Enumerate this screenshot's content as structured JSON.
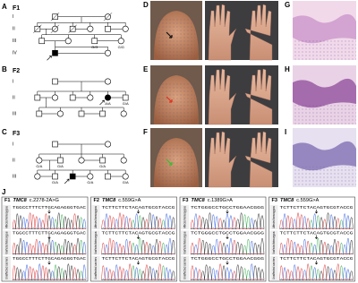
{
  "panels": {
    "pedigrees": [
      {
        "label": "A",
        "family": "F1",
        "generations": [
          "I",
          "II",
          "III",
          "IV"
        ],
        "genotypes": [
          "G/G",
          "G/G"
        ]
      },
      {
        "label": "B",
        "family": "F2",
        "generations": [
          "I",
          "II",
          "III"
        ],
        "genotypes": [
          "A/A",
          "G/A"
        ]
      },
      {
        "label": "C",
        "family": "F3",
        "generations": [
          "I",
          "II",
          "III"
        ],
        "genotypes": [
          "G/A",
          "G/A",
          "G/A",
          "G/A",
          "G/A",
          "G/A"
        ]
      }
    ],
    "photos": [
      "D",
      "E",
      "F"
    ],
    "histology": [
      "G",
      "H",
      "I"
    ],
    "sequencing": {
      "label": "J",
      "panels": [
        {
          "family": "F1",
          "gene": "TMC8",
          "variant": "c.2278-2A>G",
          "rows": [
            {
              "label": "Affected homozygous",
              "sequence": "TGGCCTTTCTTGCAGAGGGTGAC"
            },
            {
              "label": "Unaffected heterozygous",
              "sequence": "TGGCCTTTCTTGCAGAGGGTGAC"
            },
            {
              "label": "Unaffected carriers",
              "sequence": "TGGCCTTTCTTGCAGAGGGTGAC"
            }
          ]
        },
        {
          "family": "F2",
          "gene": "TMC8",
          "variant": "c.559G>A",
          "rows": [
            {
              "label": "Affected homozygous",
              "sequence": "TCTTCTTCTACAGTGCGTACCG"
            },
            {
              "label": "Unaffected heterozygous",
              "sequence": "TCTTCTTCTACAGTGCGTACCG"
            },
            {
              "label": "Unaffected carriers",
              "sequence": "TCTTCTTCTACAGTGCGTACCG"
            }
          ]
        },
        {
          "family": "F3",
          "gene": "TMC8",
          "variant": "c.1389G>A",
          "rows": [
            {
              "label": "Affected homozygous",
              "sequence": "TCTGGGCCTGCCTGGAACGGG"
            },
            {
              "label": "Unaffected heterozygous",
              "sequence": "TCTGGGCCTGCCTGGAACGGG"
            },
            {
              "label": "Unaffected carriers",
              "sequence": "TCTGGGCCTGCCTGGAACGGG"
            }
          ]
        },
        {
          "family": "F3",
          "gene": "TMC8",
          "variant": "c.559G>A",
          "rows": [
            {
              "label": "Affected homozygous",
              "sequence": "TCTTCTTCTACAGTGCGTACCG"
            },
            {
              "label": "Unaffected heterozygous",
              "sequence": "TCTTCTTCTACAGTGCGTACCG"
            },
            {
              "label": "Unaffected carriers",
              "sequence": "TCTTCTTCTACAGTGCGTACCG"
            }
          ]
        }
      ]
    }
  }
}
